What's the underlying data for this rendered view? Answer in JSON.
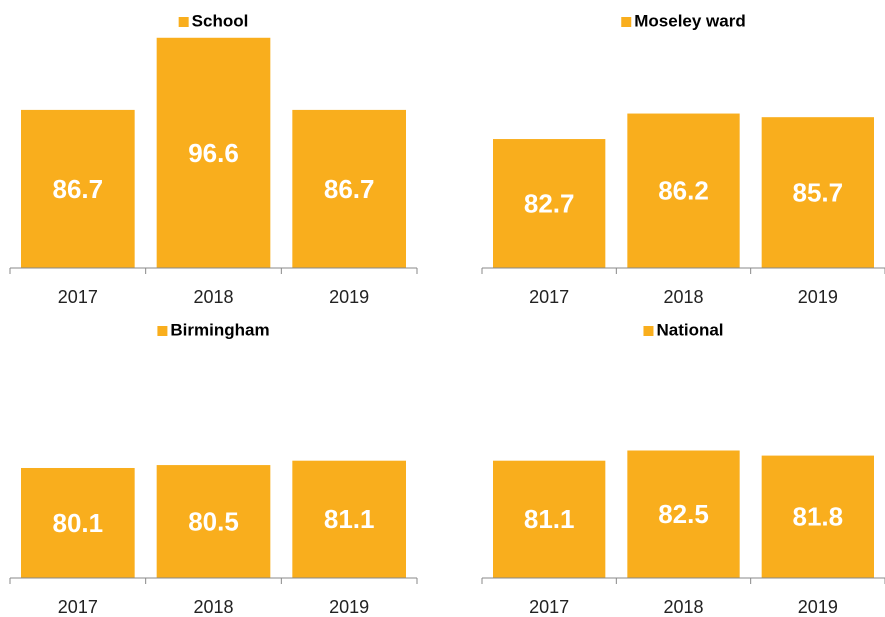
{
  "chart_data": [
    {
      "type": "bar",
      "categories": [
        "2017",
        "2018",
        "2019"
      ],
      "series": [
        {
          "name": "School",
          "color": "#f9ae1d",
          "values": [
            86.7,
            96.6,
            86.7
          ]
        }
      ],
      "ylim": [
        65,
        100
      ]
    },
    {
      "type": "bar",
      "categories": [
        "2017",
        "2018",
        "2019"
      ],
      "series": [
        {
          "name": "Moseley ward",
          "color": "#f9ae1d",
          "values": [
            82.7,
            86.2,
            85.7
          ]
        }
      ],
      "ylim": [
        65,
        100
      ]
    },
    {
      "type": "bar",
      "categories": [
        "2017",
        "2018",
        "2019"
      ],
      "series": [
        {
          "name": "Birmingham",
          "color": "#f9ae1d",
          "values": [
            80.1,
            80.5,
            81.1
          ]
        }
      ],
      "ylim": [
        65,
        100
      ]
    },
    {
      "type": "bar",
      "categories": [
        "2017",
        "2018",
        "2019"
      ],
      "series": [
        {
          "name": "National",
          "color": "#f9ae1d",
          "values": [
            81.1,
            82.5,
            81.8
          ]
        }
      ],
      "ylim": [
        65,
        100
      ]
    }
  ]
}
